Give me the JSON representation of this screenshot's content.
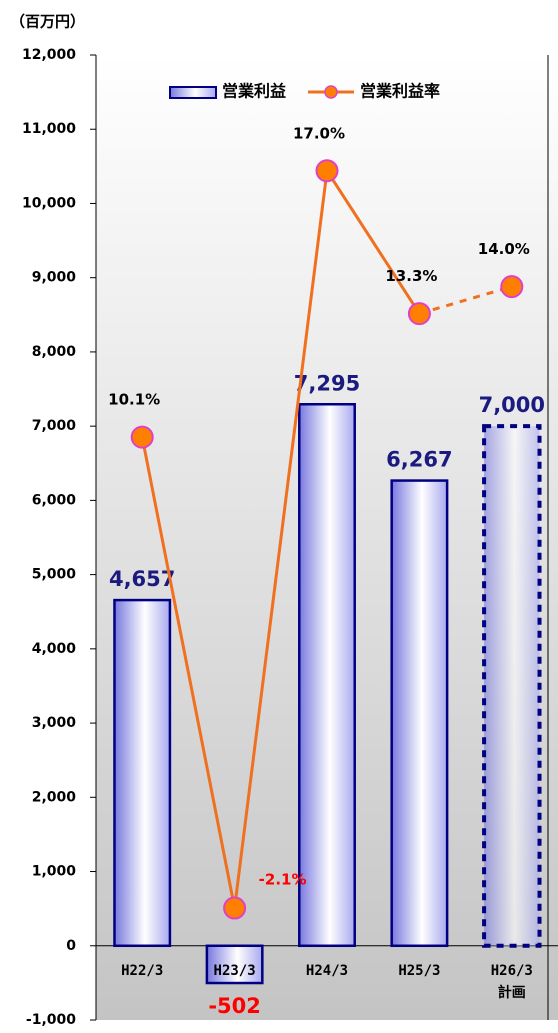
{
  "chart_data": {
    "type": "bar_line",
    "unit_label": "（百万円）",
    "categories": [
      "H22/3",
      "H23/3",
      "H24/3",
      "H25/3",
      "H26/3\n計画"
    ],
    "series": [
      {
        "name": "営業利益",
        "type": "bar",
        "color": "#000080",
        "values": [
          4657,
          -502,
          7295,
          6267,
          7000
        ],
        "value_labels": [
          "4,657",
          "-502",
          "7,295",
          "6,267",
          "7,000"
        ],
        "dashed": [
          false,
          false,
          false,
          false,
          true
        ]
      },
      {
        "name": "営業利益率",
        "type": "line",
        "axis": "y2",
        "color": "#f07020",
        "values": [
          10.1,
          -2.1,
          17.0,
          13.3,
          14.0
        ],
        "value_labels": [
          "10.1%",
          "-2.1%",
          "17.0%",
          "13.3%",
          "14.0%"
        ],
        "dashed": [
          false,
          false,
          false,
          false,
          true
        ]
      }
    ],
    "ylim": [
      -1000,
      12000
    ],
    "yticks": [
      {
        "value": -1000,
        "label": "-1,000"
      },
      0,
      {
        "value": 1000,
        "label": "1,000"
      },
      {
        "value": 2000,
        "label": "2,000"
      },
      {
        "value": 3000,
        "label": "3,000"
      },
      {
        "value": 4000,
        "label": "4,000"
      },
      {
        "value": 5000,
        "label": "5,000"
      },
      {
        "value": 6000,
        "label": "6,000"
      },
      {
        "value": 7000,
        "label": "7,000"
      },
      {
        "value": 8000,
        "label": "8,000"
      },
      {
        "value": 9000,
        "label": "9,000"
      },
      {
        "value": 10000,
        "label": "10,000"
      },
      {
        "value": 11000,
        "label": "11,000"
      },
      {
        "value": 12000,
        "label": "12,000"
      }
    ],
    "y2lim": [
      -5,
      20
    ],
    "legend": "top"
  }
}
